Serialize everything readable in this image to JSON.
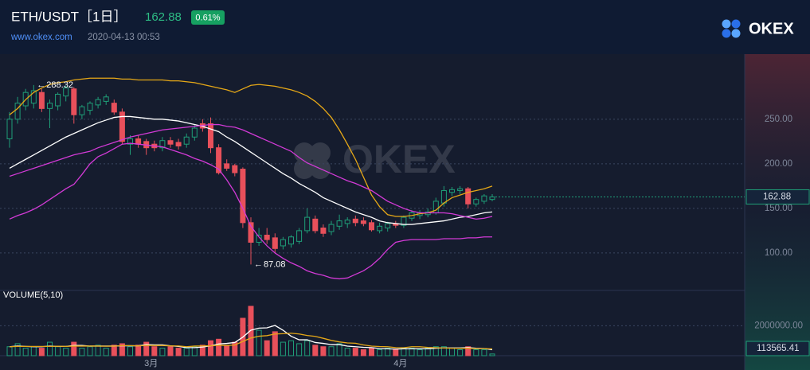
{
  "header": {
    "title": "ETH/USDT［1日］",
    "change": "0.61%",
    "site": "www.okex.com",
    "time": "2020-04-13 00:53",
    "logo": "OKEX"
  },
  "chart_data": {
    "type": "candlestick",
    "categories": [
      null,
      null,
      null,
      null,
      null,
      null,
      null,
      null,
      null,
      null,
      null,
      null,
      null,
      null,
      null,
      null,
      null,
      "3月",
      null,
      null,
      null,
      null,
      null,
      null,
      null,
      null,
      null,
      null,
      null,
      null,
      null,
      null,
      null,
      null,
      null,
      null,
      null,
      null,
      null,
      null,
      null,
      null,
      null,
      null,
      null,
      null,
      null,
      null,
      "4月",
      null,
      null,
      null,
      null,
      null,
      null,
      null,
      null,
      null,
      null,
      null,
      null
    ],
    "open": [
      228,
      250,
      265,
      268,
      280,
      262,
      265,
      276,
      284,
      255,
      260,
      266,
      270,
      268,
      258,
      222,
      228,
      225,
      222,
      218,
      226,
      224,
      222,
      230,
      245,
      245,
      218,
      200,
      198,
      194,
      134,
      112,
      120,
      117,
      108,
      110,
      113,
      125,
      138,
      128,
      124,
      130,
      133,
      138,
      136,
      134,
      125,
      128,
      133,
      131,
      139,
      142,
      143,
      145,
      156,
      168,
      170,
      172,
      155,
      158,
      160
    ],
    "high": [
      258,
      275,
      284,
      288.32,
      284,
      272,
      280,
      288,
      286,
      266,
      270,
      275,
      278,
      272,
      262,
      232,
      232,
      228,
      226,
      230,
      230,
      228,
      234,
      244,
      250,
      252,
      222,
      205,
      200,
      196,
      140,
      128,
      128,
      122,
      118,
      120,
      128,
      150,
      142,
      132,
      136,
      143,
      140,
      142,
      140,
      137,
      134,
      135,
      136,
      142,
      148,
      148,
      150,
      162,
      175,
      174,
      175,
      174,
      162,
      166,
      166
    ],
    "low": [
      218,
      245,
      260,
      262,
      258,
      240,
      260,
      270,
      245,
      250,
      255,
      262,
      266,
      255,
      222,
      210,
      218,
      210,
      214,
      214,
      218,
      216,
      218,
      226,
      236,
      212,
      188,
      192,
      186,
      128,
      87.08,
      108,
      110,
      100,
      104,
      106,
      110,
      122,
      122,
      118,
      120,
      126,
      128,
      130,
      130,
      124,
      122,
      124,
      128,
      128,
      136,
      138,
      140,
      143,
      152,
      164,
      166,
      150,
      152,
      155,
      158
    ],
    "close": [
      250,
      268,
      280,
      282,
      262,
      268,
      278,
      285,
      255,
      264,
      268,
      272,
      275,
      258,
      225,
      228,
      222,
      218,
      218,
      226,
      222,
      220,
      230,
      240,
      240,
      218,
      190,
      195,
      190,
      134,
      112,
      120,
      115,
      105,
      115,
      118,
      125,
      140,
      125,
      122,
      132,
      136,
      137,
      134,
      133,
      126,
      130,
      133,
      131,
      140,
      145,
      145,
      146,
      158,
      170,
      171,
      172,
      155,
      160,
      164,
      162.88
    ],
    "up_color": "#1f9e78",
    "down_color": "#e8505b",
    "ylim": [
      58,
      323
    ],
    "yticks": [
      {
        "value": 100,
        "label": "100.00"
      },
      {
        "value": 150,
        "label": "150.00"
      },
      {
        "value": 200,
        "label": "200.00"
      },
      {
        "value": 250,
        "label": "250.00"
      }
    ],
    "grid": true,
    "lines": [
      {
        "color": "#e6a817",
        "values": [
          255,
          262,
          272,
          280,
          285,
          289,
          291,
          292,
          294,
          295,
          296,
          296,
          296,
          296,
          295,
          295,
          294,
          294,
          294,
          294,
          293,
          293,
          292,
          291,
          289,
          287,
          285,
          283,
          280,
          284,
          288,
          289,
          288,
          287,
          285,
          283,
          280,
          276,
          270,
          262,
          252,
          238,
          222,
          205,
          185,
          165,
          152,
          143,
          141,
          141,
          142,
          144,
          145,
          148,
          156,
          162,
          165,
          168,
          170,
          172,
          175
        ]
      },
      {
        "color": "#ffffff",
        "values": [
          195,
          200,
          205,
          210,
          215,
          220,
          225,
          230,
          234,
          238,
          242,
          246,
          249,
          252,
          253,
          253,
          252,
          251,
          250,
          250,
          249,
          248,
          246,
          244,
          242,
          239,
          236,
          230,
          225,
          219,
          213,
          207,
          201,
          195,
          189,
          184,
          178,
          173,
          168,
          162,
          158,
          154,
          150,
          146,
          143,
          140,
          136,
          134,
          133,
          132,
          132,
          133,
          134,
          135,
          136,
          138,
          140,
          141,
          143,
          145,
          146
        ]
      },
      {
        "color": "#d23ad6",
        "values": [
          186,
          189,
          192,
          195,
          198,
          201,
          204,
          207,
          210,
          212,
          214,
          218,
          221,
          224,
          227,
          230,
          232,
          234,
          236,
          238,
          239,
          240,
          241,
          242,
          243,
          244,
          244,
          242,
          241,
          238,
          234,
          230,
          226,
          222,
          218,
          214,
          207,
          201,
          197,
          193,
          189,
          185,
          181,
          178,
          174,
          170,
          164,
          158,
          154,
          150,
          147,
          145,
          145,
          145,
          145,
          144,
          142,
          140,
          138,
          139,
          141
        ]
      },
      {
        "color": "#d23ad6",
        "values": [
          138,
          142,
          145,
          149,
          154,
          160,
          166,
          172,
          177,
          188,
          200,
          208,
          212,
          217,
          222,
          223,
          222,
          221,
          220,
          219,
          216,
          213,
          210,
          206,
          203,
          199,
          194,
          182,
          168,
          150,
          130,
          118,
          108,
          100,
          94,
          89,
          85,
          80,
          77,
          75,
          72,
          71,
          72,
          76,
          80,
          86,
          94,
          104,
          112,
          114,
          115,
          115,
          115,
          115,
          116,
          116,
          116,
          117,
          117,
          118,
          118
        ]
      }
    ],
    "volume_title": "VOLUME(5,10)",
    "volume": [
      600000,
      800000,
      500000,
      600000,
      500000,
      900000,
      600000,
      500000,
      900000,
      500000,
      600000,
      700000,
      500000,
      700000,
      800000,
      600000,
      700000,
      900000,
      600000,
      500000,
      600000,
      500000,
      500000,
      600000,
      700000,
      1000000,
      1100000,
      700000,
      900000,
      2500000,
      3300000,
      1700000,
      1000000,
      1600000,
      900000,
      1000000,
      800000,
      1000000,
      700000,
      600000,
      600000,
      800000,
      500000,
      500000,
      400000,
      500000,
      400000,
      500000,
      400000,
      500000,
      500000,
      400000,
      500000,
      600000,
      600000,
      500000,
      400000,
      600000,
      400000,
      400000,
      113565.41
    ],
    "volume_ylim": [
      0,
      4200000
    ],
    "volume_yticks": [
      {
        "value": 2000000,
        "label": "2000000.00"
      }
    ],
    "volume_lines": [
      {
        "color": "#ffffff",
        "values": [
          600000,
          650000,
          620000,
          600000,
          600000,
          640000,
          620000,
          620000,
          680000,
          680000,
          640000,
          640000,
          640000,
          640000,
          660000,
          660000,
          660000,
          740000,
          720000,
          720000,
          660000,
          620000,
          540000,
          540000,
          580000,
          660000,
          780000,
          820000,
          880000,
          1240000,
          1700000,
          1840000,
          1860000,
          2020000,
          1700000,
          1300000,
          1060000,
          1060000,
          880000,
          820000,
          740000,
          740000,
          640000,
          600000,
          560000,
          540000,
          480000,
          460000,
          440000,
          460000,
          460000,
          460000,
          460000,
          500000,
          520000,
          520000,
          520000,
          540000,
          500000,
          480000,
          400000
        ]
      },
      {
        "color": "#e6a817",
        "values": [
          600000,
          620000,
          620000,
          620000,
          620000,
          620000,
          630000,
          620000,
          640000,
          640000,
          640000,
          640000,
          630000,
          640000,
          670000,
          670000,
          650000,
          690000,
          680000,
          680000,
          650000,
          650000,
          600000,
          640000,
          650000,
          660000,
          700000,
          680000,
          710000,
          950000,
          1180000,
          1300000,
          1340000,
          1450000,
          1470000,
          1500000,
          1450000,
          1350000,
          1290000,
          1160000,
          1020000,
          920000,
          850000,
          830000,
          720000,
          640000,
          610000,
          600000,
          540000,
          530000,
          600000,
          600000,
          550000,
          530000,
          510000,
          500000,
          490000,
          500000,
          470000,
          470000,
          450000
        ]
      }
    ]
  }
}
